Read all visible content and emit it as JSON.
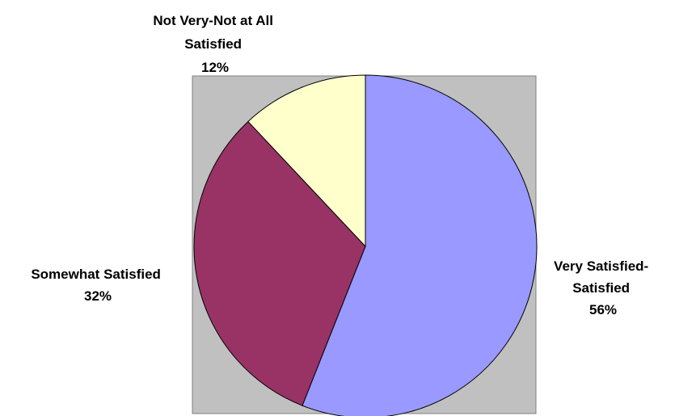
{
  "chart_data": {
    "type": "pie",
    "title": "",
    "slices": [
      {
        "label_lines": [
          "Very Satisfied-",
          "Satisfied"
        ],
        "value": 56,
        "value_label": "56%",
        "color": "#9999ff"
      },
      {
        "label_lines": [
          "Somewhat Satisfied"
        ],
        "value": 32,
        "value_label": "32%",
        "color": "#993366"
      },
      {
        "label_lines": [
          "Not Very-Not at All",
          "Satisfied"
        ],
        "value": 12,
        "value_label": "12%",
        "color": "#ffffcc"
      }
    ],
    "plot_area_color": "#c0c0c0",
    "start_angle": "12 o'clock",
    "direction": "clockwise",
    "legend": "none"
  }
}
